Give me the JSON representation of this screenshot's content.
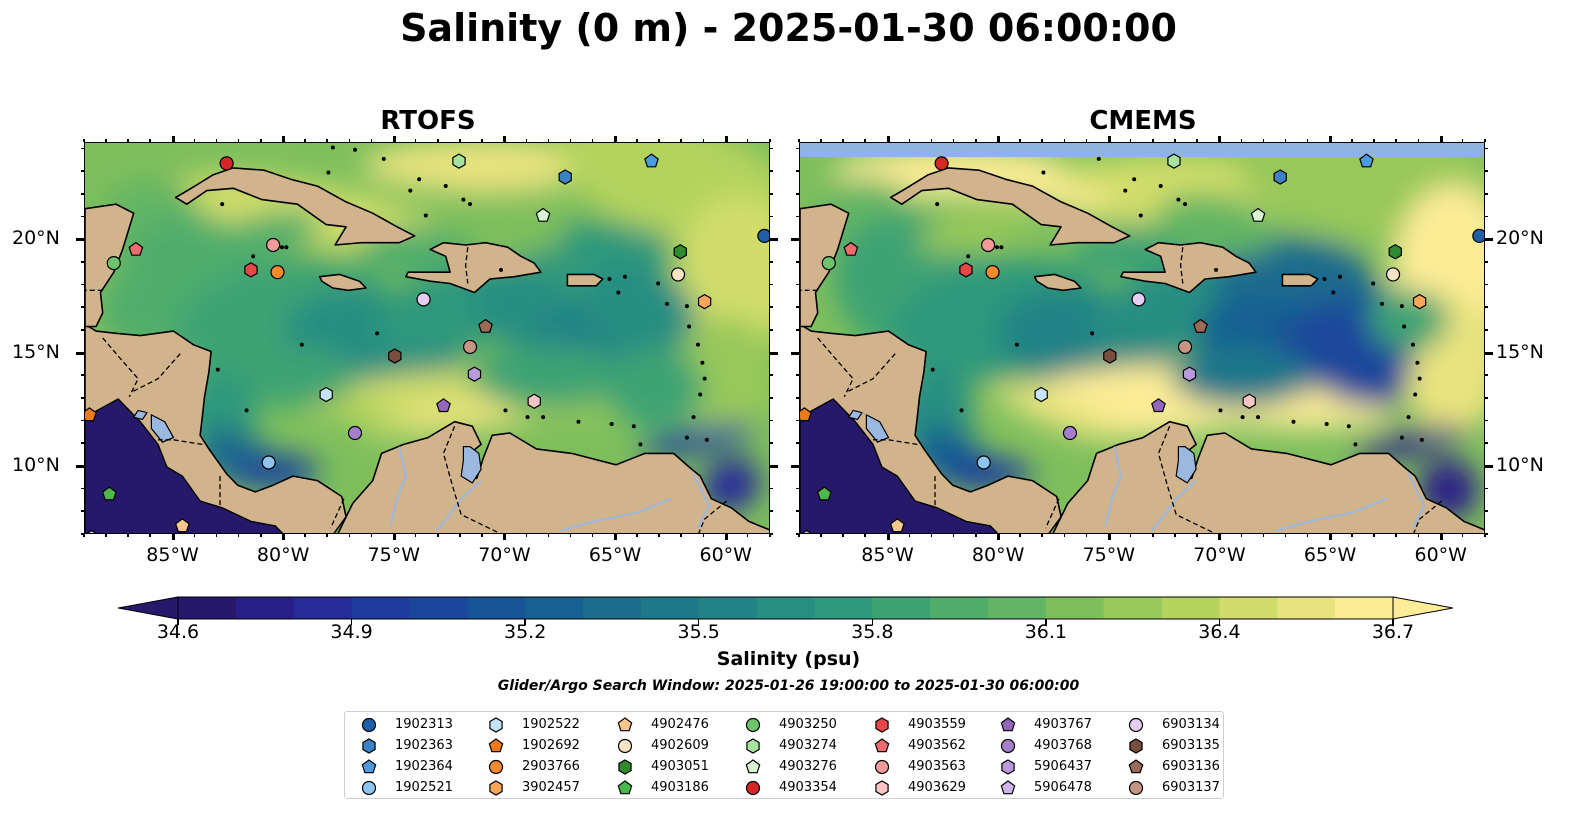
{
  "title": "Salinity (0 m) - 2025-01-30 06:00:00",
  "panels": [
    {
      "title": "RTOFS",
      "has_band": false
    },
    {
      "title": "CMEMS",
      "has_band": true
    }
  ],
  "map": {
    "extent": {
      "lon": [
        -89,
        -58
      ],
      "lat": [
        7,
        24.3
      ]
    },
    "lon_ticks": [
      {
        "value": -85,
        "label": "85°W"
      },
      {
        "value": -80,
        "label": "80°W"
      },
      {
        "value": -75,
        "label": "75°W"
      },
      {
        "value": -70,
        "label": "70°W"
      },
      {
        "value": -65,
        "label": "65°W"
      },
      {
        "value": -60,
        "label": "60°W"
      }
    ],
    "lat_ticks": [
      {
        "value": 10,
        "label": "10°N"
      },
      {
        "value": 15,
        "label": "15°N"
      },
      {
        "value": 20,
        "label": "20°N"
      }
    ],
    "land_color": "#d2b48c",
    "lake_color": "#9ab8e0"
  },
  "colorbar": {
    "label": "Salinity (psu)",
    "min": 34.6,
    "max": 36.7,
    "ticks": [
      "34.6",
      "34.9",
      "35.2",
      "35.5",
      "35.8",
      "36.1",
      "36.4",
      "36.7"
    ],
    "colors": [
      "#26196b",
      "#2a1f87",
      "#252b98",
      "#1f3a9d",
      "#1a469b",
      "#175397",
      "#176092",
      "#1b6c8d",
      "#1f778a",
      "#238286",
      "#288d82",
      "#2f987c",
      "#3da373",
      "#4fad6c",
      "#64b564",
      "#7ebf5c",
      "#98c85a",
      "#b4d35d",
      "#d1dd6b",
      "#e9e37f",
      "#fdec96"
    ]
  },
  "window_text": "Glider/Argo Search Window: 2025-01-26 19:00:00 to 2025-01-30 06:00:00",
  "floats": [
    {
      "id": "1902313",
      "marker": "circle",
      "color": "#1f5fa8",
      "lon": -58.3,
      "lat": 20.2
    },
    {
      "id": "1902363",
      "marker": "hexagon",
      "color": "#3d82c4",
      "lon": -67.3,
      "lat": 22.8
    },
    {
      "id": "1902364",
      "marker": "pentagon",
      "color": "#4a9be0",
      "lon": -63.4,
      "lat": 23.5
    },
    {
      "id": "1902521",
      "marker": "circle",
      "color": "#8ec5ee",
      "lon": -80.7,
      "lat": 10.2
    },
    {
      "id": "1902522",
      "marker": "hexagon",
      "color": "#c3e3f7",
      "lon": -78.1,
      "lat": 13.2
    },
    {
      "id": "1902692",
      "marker": "pentagon",
      "color": "#f07a1a",
      "lon": -88.8,
      "lat": 12.3
    },
    {
      "id": "2903766",
      "marker": "circle",
      "color": "#f58a2c",
      "lon": -80.3,
      "lat": 18.6
    },
    {
      "id": "3902457",
      "marker": "hexagon",
      "color": "#f9a55a",
      "lon": -61.0,
      "lat": 17.3
    },
    {
      "id": "4902476",
      "marker": "pentagon",
      "color": "#fbc78a",
      "lon": -84.6,
      "lat": 7.4
    },
    {
      "id": "4902609",
      "marker": "circle",
      "color": "#fde2c4",
      "lon": -62.2,
      "lat": 18.5
    },
    {
      "id": "4903051",
      "marker": "hexagon",
      "color": "#2e8b2e",
      "lon": -62.1,
      "lat": 19.5
    },
    {
      "id": "4903186",
      "marker": "pentagon",
      "color": "#4cb84c",
      "lon": -87.9,
      "lat": 8.8
    },
    {
      "id": "4903250",
      "marker": "circle",
      "color": "#6cc46c",
      "lon": -87.7,
      "lat": 19.0
    },
    {
      "id": "4903274",
      "marker": "hexagon",
      "color": "#a6e3a0",
      "lon": -72.1,
      "lat": 23.5
    },
    {
      "id": "4903276",
      "marker": "pentagon",
      "color": "#d8f5d0",
      "lon": -68.3,
      "lat": 21.1
    },
    {
      "id": "4903354",
      "marker": "circle",
      "color": "#d62728",
      "lon": -82.6,
      "lat": 23.4
    },
    {
      "id": "4903559",
      "marker": "hexagon",
      "color": "#e8474a",
      "lon": -81.5,
      "lat": 18.7
    },
    {
      "id": "4903562",
      "marker": "pentagon",
      "color": "#ee6a6c",
      "lon": -86.7,
      "lat": 19.6
    },
    {
      "id": "4903563",
      "marker": "circle",
      "color": "#f2999a",
      "lon": -80.5,
      "lat": 19.8
    },
    {
      "id": "4903629",
      "marker": "hexagon",
      "color": "#f9c4c4",
      "lon": -68.7,
      "lat": 12.9
    },
    {
      "id": "4903767",
      "marker": "pentagon",
      "color": "#9467bd",
      "lon": -72.8,
      "lat": 12.7
    },
    {
      "id": "4903768",
      "marker": "circle",
      "color": "#a57fcb",
      "lon": -76.8,
      "lat": 11.5
    },
    {
      "id": "5906437",
      "marker": "hexagon",
      "color": "#b99adb",
      "lon": -71.4,
      "lat": 14.1
    },
    {
      "id": "5906478",
      "marker": "pentagon",
      "color": "#cfb4ea",
      "lon": -88.7,
      "lat": 6.9
    },
    {
      "id": "6903134",
      "marker": "circle",
      "color": "#e5cdf4",
      "lon": -73.7,
      "lat": 17.4
    },
    {
      "id": "6903135",
      "marker": "hexagon",
      "color": "#7a4e3e",
      "lon": -75.0,
      "lat": 14.9
    },
    {
      "id": "6903136",
      "marker": "pentagon",
      "color": "#9c6a58",
      "lon": -70.9,
      "lat": 16.2
    },
    {
      "id": "6903137",
      "marker": "circle",
      "color": "#c49484",
      "lon": -71.6,
      "lat": 15.3
    }
  ]
}
